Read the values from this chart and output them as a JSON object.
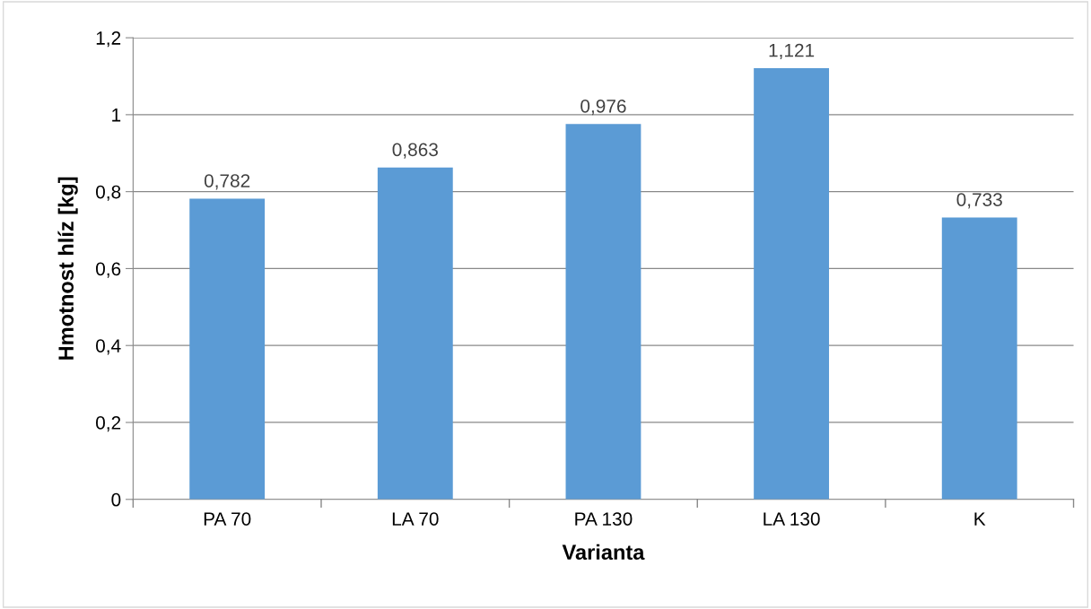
{
  "chart_data": {
    "type": "bar",
    "xlabel": "Varianta",
    "ylabel": "Hmotnost hlíz [kg]",
    "categories": [
      "PA 70",
      "LA 70",
      "PA 130",
      "LA 130",
      "K"
    ],
    "values": [
      0.782,
      0.863,
      0.976,
      1.121,
      0.733
    ],
    "value_labels": [
      "0,782",
      "0,863",
      "0,976",
      "1,121",
      "0,733"
    ],
    "color": "#5b9bd5",
    "ylim": [
      0,
      1.2
    ],
    "yticks": [
      0,
      {
        "value": 0.2,
        "label": "0,2"
      },
      {
        "value": 0.4,
        "label": "0,4"
      },
      {
        "value": 0.6,
        "label": "0,6"
      },
      {
        "value": 0.8,
        "label": "0,8"
      },
      1,
      {
        "value": 1.2,
        "label": "1,2"
      }
    ],
    "grid": "y",
    "legend": false
  }
}
